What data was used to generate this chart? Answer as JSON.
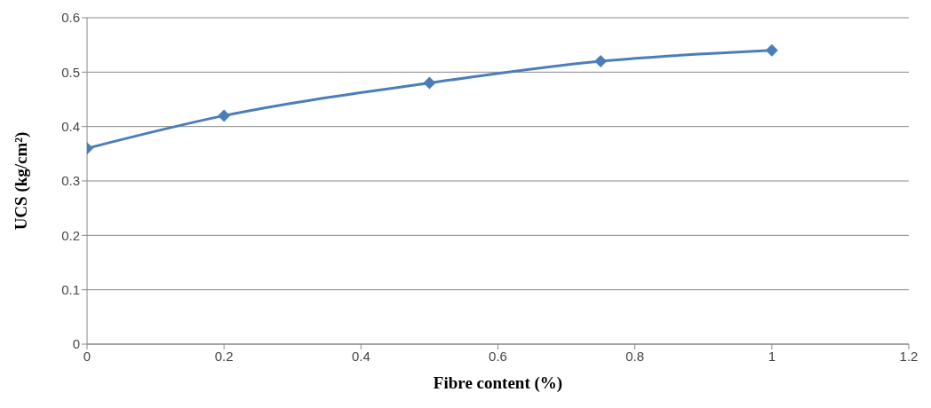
{
  "chart_data": {
    "type": "line",
    "xlabel": "Fibre content (%)",
    "ylabel": "UCS (kg/cm²)",
    "x": [
      0,
      0.2,
      0.5,
      0.75,
      1
    ],
    "series": [
      {
        "color": "#4a7ebb",
        "values": [
          0.36,
          0.42,
          0.48,
          0.52,
          0.54
        ]
      }
    ],
    "xlim": [
      0,
      1.2
    ],
    "xticks": [
      0,
      0.2,
      0.4,
      0.6,
      0.8,
      1,
      1.2
    ],
    "ylim": [
      0,
      0.6
    ],
    "yticks": [
      0,
      0.1,
      0.2,
      0.3,
      0.4,
      0.5,
      0.6
    ],
    "grid": "y",
    "marker": "diamond",
    "line_style": "solid"
  }
}
